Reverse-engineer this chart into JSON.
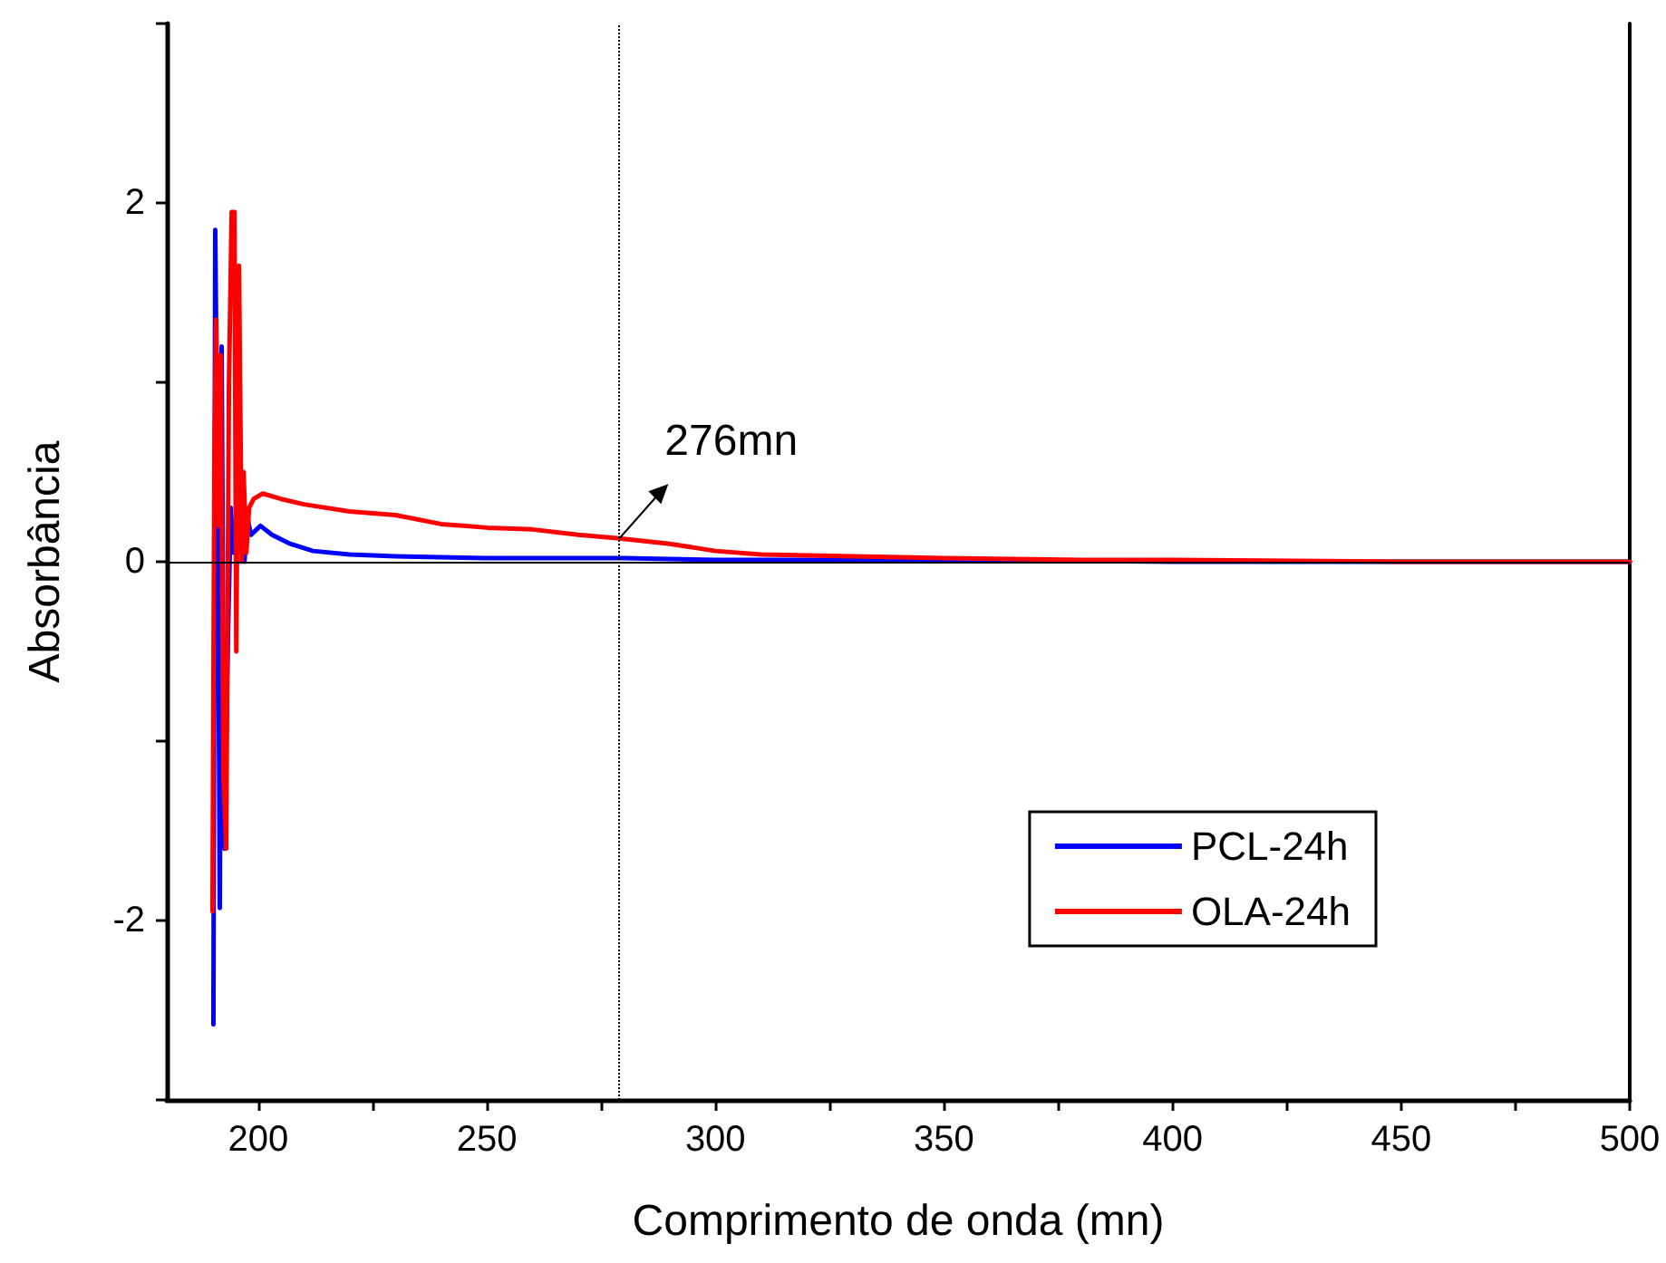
{
  "chart_data": {
    "type": "line",
    "xlabel": "Comprimento de onda (mn)",
    "ylabel": "Absorbância",
    "xlim": [
      180,
      500
    ],
    "xticks": [
      200,
      {
        "value": 225,
        "label": null
      },
      250,
      {
        "value": 275,
        "label": null
      },
      300,
      {
        "value": 325,
        "label": null
      },
      350,
      {
        "value": 375,
        "label": null
      },
      400,
      {
        "value": 425,
        "label": null
      },
      450,
      {
        "value": 475,
        "label": null
      },
      500
    ],
    "ylim": [
      -3,
      3
    ],
    "yticks": [
      {
        "value": -3,
        "label": null
      },
      -2,
      {
        "value": -1,
        "label": null
      },
      0,
      {
        "value": 1,
        "label": null
      },
      2,
      {
        "value": 3,
        "label": null
      }
    ],
    "grid": false,
    "legend": "bottom right",
    "line_style": "solid",
    "ref_lines": [
      {
        "axis": "y",
        "value": 0,
        "color": "#000000",
        "line_style": "solid"
      },
      {
        "axis": "x",
        "value": 279,
        "color": "#000000",
        "line_style": "dotted"
      }
    ],
    "annotations": [
      {
        "text": "276mn",
        "x": 279,
        "y": 0.13
      }
    ],
    "series": [
      {
        "name": "PCL-24h",
        "color": "#0000ff",
        "x": [
          190.2,
          190.6,
          191.2,
          191.6,
          192,
          192.6,
          193.4,
          194,
          194.6,
          195.4,
          196,
          197,
          197.6,
          198.4,
          200.5,
          203,
          207,
          212,
          220,
          230,
          250,
          280,
          300,
          350,
          400,
          500
        ],
        "values": [
          -2.58,
          1.85,
          0.15,
          -1.93,
          1.2,
          -1.6,
          -0.4,
          0.3,
          0.05,
          0.25,
          0.1,
          0.0,
          0.25,
          0.15,
          0.2,
          0.15,
          0.1,
          0.06,
          0.04,
          0.03,
          0.02,
          0.02,
          0.01,
          0.01,
          0,
          0
        ]
      },
      {
        "name": "OLA-24h",
        "color": "#ff0000",
        "x": [
          190,
          190.4,
          190.8,
          191.4,
          191.8,
          192.4,
          193,
          193.6,
          194.2,
          194.8,
          195.2,
          195.8,
          196.4,
          196.8,
          197.4,
          198,
          199,
          201,
          205,
          210,
          220,
          230,
          240,
          250,
          260,
          270,
          279,
          290,
          300,
          310,
          330,
          350,
          380,
          400,
          450,
          500
        ],
        "values": [
          -1.95,
          0.55,
          1.35,
          0.2,
          1.15,
          -1.2,
          -1.6,
          1.0,
          1.95,
          1.95,
          -0.5,
          1.65,
          0.0,
          0.5,
          0.05,
          0.3,
          0.35,
          0.38,
          0.35,
          0.32,
          0.28,
          0.26,
          0.21,
          0.19,
          0.18,
          0.15,
          0.13,
          0.1,
          0.06,
          0.04,
          0.03,
          0.02,
          0.01,
          0.01,
          0,
          0
        ]
      }
    ]
  }
}
